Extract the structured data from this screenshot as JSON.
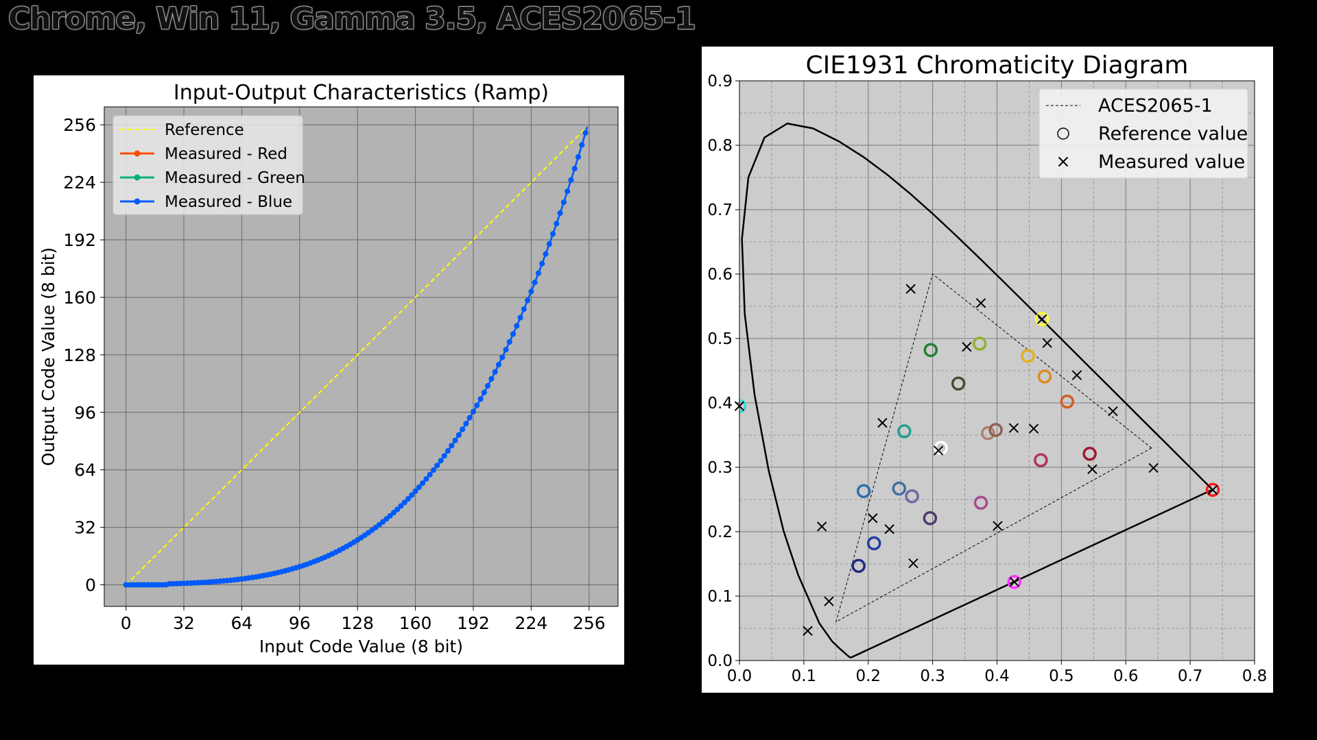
{
  "page": {
    "title": "Chrome, Win 11, Gamma 3.5, ACES2065-1"
  },
  "chart_data": [
    {
      "type": "line",
      "title": "Input-Output Characteristics (Ramp)",
      "xlabel": "Input Code Value (8 bit)",
      "ylabel": "Output Code Value (8 bit)",
      "xlim": [
        -12,
        272
      ],
      "ylim": [
        -12,
        266
      ],
      "xticks": [
        0,
        32,
        64,
        96,
        128,
        160,
        192,
        224,
        256
      ],
      "yticks": [
        0,
        32,
        64,
        96,
        128,
        160,
        192,
        224,
        256
      ],
      "grid": true,
      "legend_position": "top-left",
      "background": "#b3b3b3",
      "series": [
        {
          "name": "Reference",
          "color": "#ffff00",
          "style": "dashed",
          "x": [
            0,
            255
          ],
          "y": [
            0,
            255
          ]
        },
        {
          "name": "Measured - Red",
          "color": "#ff4b00",
          "style": "line-marker",
          "gamma": 3.5
        },
        {
          "name": "Measured - Green",
          "color": "#03af7a",
          "style": "line-marker",
          "gamma": 3.5
        },
        {
          "name": "Measured - Blue",
          "color": "#005aff",
          "style": "line-marker",
          "gamma": 3.5
        }
      ]
    },
    {
      "type": "scatter",
      "title": "CIE1931 Chromaticity Diagram",
      "xlabel": "",
      "ylabel": "",
      "xlim": [
        0,
        0.8
      ],
      "ylim": [
        0,
        0.9
      ],
      "xticks": [
        0.0,
        0.1,
        0.2,
        0.3,
        0.4,
        0.5,
        0.6,
        0.7,
        0.8
      ],
      "yticks": [
        0.0,
        0.1,
        0.2,
        0.3,
        0.4,
        0.5,
        0.6,
        0.7,
        0.8,
        0.9
      ],
      "tick_labels_x": [
        "0.0",
        "0.1",
        "0.2",
        "0.3",
        "0.4",
        "0.5",
        "0.6",
        "0.7",
        "0.8"
      ],
      "tick_labels_y": [
        "0.0",
        "0.1",
        "0.2",
        "0.3",
        "0.4",
        "0.5",
        "0.6",
        "0.7",
        "0.8",
        "0.9"
      ],
      "grid": true,
      "legend_position": "top-right",
      "background": "#cccccc",
      "legend": [
        {
          "label": "ACES2065-1",
          "symbol": "dashed-line"
        },
        {
          "label": "Reference value",
          "symbol": "circle"
        },
        {
          "label": "Measured value",
          "symbol": "x"
        }
      ],
      "gamut_triangle": [
        [
          0.7347,
          0.2653
        ],
        [
          0.0,
          1.0
        ],
        [
          0.0001,
          -0.077
        ]
      ],
      "gamut_triangle_drawn": [
        [
          0.64,
          0.33
        ],
        [
          0.3,
          0.6
        ],
        [
          0.15,
          0.06
        ]
      ],
      "spectral_locus": [
        [
          0.1741,
          0.005
        ],
        [
          0.1738,
          0.0049
        ],
        [
          0.1733,
          0.0048
        ],
        [
          0.1726,
          0.0048
        ],
        [
          0.1714,
          0.0051
        ],
        [
          0.1689,
          0.0069
        ],
        [
          0.1644,
          0.0109
        ],
        [
          0.1566,
          0.0177
        ],
        [
          0.144,
          0.0297
        ],
        [
          0.1241,
          0.0578
        ],
        [
          0.0913,
          0.1327
        ],
        [
          0.0687,
          0.2007
        ],
        [
          0.0454,
          0.295
        ],
        [
          0.0235,
          0.4127
        ],
        [
          0.0082,
          0.5384
        ],
        [
          0.0039,
          0.6548
        ],
        [
          0.0139,
          0.7502
        ],
        [
          0.0389,
          0.812
        ],
        [
          0.0743,
          0.8338
        ],
        [
          0.1142,
          0.8262
        ],
        [
          0.1547,
          0.8059
        ],
        [
          0.1929,
          0.7816
        ],
        [
          0.2296,
          0.7543
        ],
        [
          0.2658,
          0.7243
        ],
        [
          0.3016,
          0.6923
        ],
        [
          0.3373,
          0.6589
        ],
        [
          0.3731,
          0.6245
        ],
        [
          0.4087,
          0.5896
        ],
        [
          0.4441,
          0.5547
        ],
        [
          0.4788,
          0.5202
        ],
        [
          0.5125,
          0.4866
        ],
        [
          0.5448,
          0.4544
        ],
        [
          0.5752,
          0.4242
        ],
        [
          0.6029,
          0.3965
        ],
        [
          0.627,
          0.3725
        ],
        [
          0.6482,
          0.3514
        ],
        [
          0.6658,
          0.334
        ],
        [
          0.6801,
          0.3197
        ],
        [
          0.6915,
          0.3083
        ],
        [
          0.7006,
          0.2993
        ],
        [
          0.7079,
          0.292
        ],
        [
          0.714,
          0.2859
        ],
        [
          0.719,
          0.2809
        ],
        [
          0.723,
          0.277
        ],
        [
          0.726,
          0.274
        ],
        [
          0.7283,
          0.2717
        ],
        [
          0.73,
          0.27
        ],
        [
          0.7311,
          0.2689
        ],
        [
          0.732,
          0.268
        ],
        [
          0.7327,
          0.2673
        ],
        [
          0.7334,
          0.2666
        ],
        [
          0.734,
          0.266
        ],
        [
          0.7344,
          0.2656
        ],
        [
          0.7346,
          0.2654
        ],
        [
          0.7347,
          0.2653
        ]
      ],
      "reference_points": [
        {
          "x": 0.735,
          "y": 0.265,
          "color": "#ff1a1a"
        },
        {
          "x": 0.47,
          "y": 0.53,
          "color": "#ffff33"
        },
        {
          "x": 0.0,
          "y": 0.395,
          "color": "#33dddd"
        },
        {
          "x": 0.427,
          "y": 0.122,
          "color": "#ff33ff"
        },
        {
          "x": 0.313,
          "y": 0.33,
          "color": "#ffffff"
        },
        {
          "x": 0.185,
          "y": 0.147,
          "color": "#1f2a80"
        },
        {
          "x": 0.209,
          "y": 0.182,
          "color": "#1f40a0"
        },
        {
          "x": 0.193,
          "y": 0.263,
          "color": "#2a70b0"
        },
        {
          "x": 0.248,
          "y": 0.267,
          "color": "#4070a0"
        },
        {
          "x": 0.268,
          "y": 0.255,
          "color": "#6a6aa8"
        },
        {
          "x": 0.296,
          "y": 0.221,
          "color": "#503a6a"
        },
        {
          "x": 0.375,
          "y": 0.245,
          "color": "#a84a90"
        },
        {
          "x": 0.468,
          "y": 0.311,
          "color": "#b03060"
        },
        {
          "x": 0.544,
          "y": 0.321,
          "color": "#a01830"
        },
        {
          "x": 0.509,
          "y": 0.402,
          "color": "#d06020"
        },
        {
          "x": 0.474,
          "y": 0.441,
          "color": "#e08a20"
        },
        {
          "x": 0.448,
          "y": 0.473,
          "color": "#e0b020"
        },
        {
          "x": 0.373,
          "y": 0.492,
          "color": "#90b030"
        },
        {
          "x": 0.297,
          "y": 0.482,
          "color": "#208030"
        },
        {
          "x": 0.34,
          "y": 0.43,
          "color": "#405030"
        },
        {
          "x": 0.256,
          "y": 0.356,
          "color": "#20a090"
        },
        {
          "x": 0.386,
          "y": 0.353,
          "color": "#b08070"
        },
        {
          "x": 0.398,
          "y": 0.358,
          "color": "#906050"
        }
      ],
      "measured_points": [
        {
          "x": 0.735,
          "y": 0.265
        },
        {
          "x": 0.47,
          "y": 0.53
        },
        {
          "x": 0.0,
          "y": 0.395
        },
        {
          "x": 0.427,
          "y": 0.122
        },
        {
          "x": 0.266,
          "y": 0.577
        },
        {
          "x": 0.375,
          "y": 0.555
        },
        {
          "x": 0.478,
          "y": 0.493
        },
        {
          "x": 0.353,
          "y": 0.487
        },
        {
          "x": 0.524,
          "y": 0.443
        },
        {
          "x": 0.58,
          "y": 0.387
        },
        {
          "x": 0.222,
          "y": 0.369
        },
        {
          "x": 0.426,
          "y": 0.361
        },
        {
          "x": 0.457,
          "y": 0.36
        },
        {
          "x": 0.309,
          "y": 0.326
        },
        {
          "x": 0.643,
          "y": 0.299
        },
        {
          "x": 0.548,
          "y": 0.297
        },
        {
          "x": 0.207,
          "y": 0.221
        },
        {
          "x": 0.128,
          "y": 0.208
        },
        {
          "x": 0.233,
          "y": 0.204
        },
        {
          "x": 0.401,
          "y": 0.209
        },
        {
          "x": 0.27,
          "y": 0.151
        },
        {
          "x": 0.139,
          "y": 0.092
        },
        {
          "x": 0.106,
          "y": 0.046
        }
      ]
    }
  ]
}
